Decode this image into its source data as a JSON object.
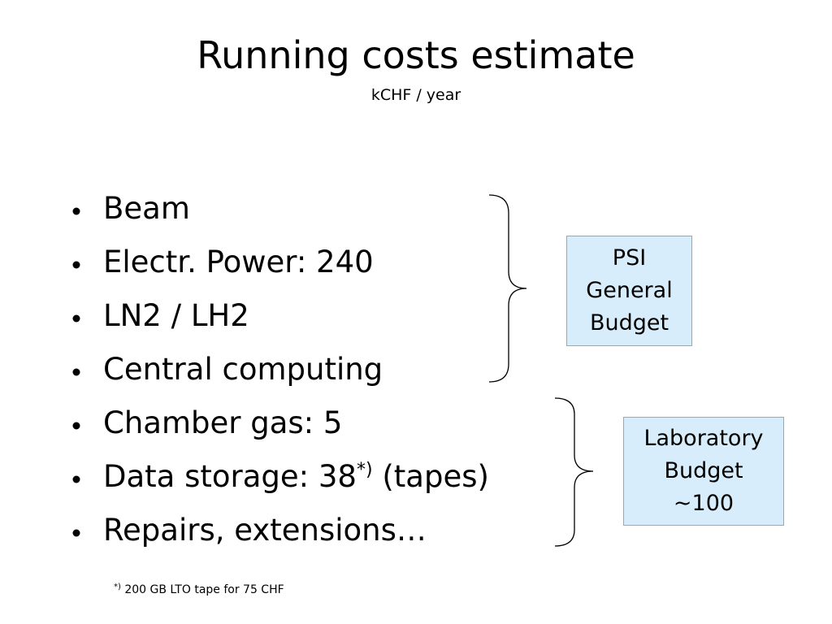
{
  "title": "Running costs estimate",
  "subtitle": "kCHF / year",
  "bullets": [
    {
      "text": "Beam"
    },
    {
      "text": "Electr. Power: 240"
    },
    {
      "text": "LN2 / LH2"
    },
    {
      "text": "Central computing"
    },
    {
      "text": "Chamber gas: 5"
    },
    {
      "text": "Data storage: 38",
      "sup": "*)",
      "after": " (tapes)"
    },
    {
      "text": "Repairs, extensions…"
    }
  ],
  "boxes": [
    {
      "lines": [
        "PSI",
        "General",
        "Budget"
      ]
    },
    {
      "lines": [
        "Laboratory",
        "Budget",
        "~100"
      ]
    }
  ],
  "footnote": {
    "sup": "*)",
    "text": " 200 GB LTO tape for 75 CHF"
  }
}
